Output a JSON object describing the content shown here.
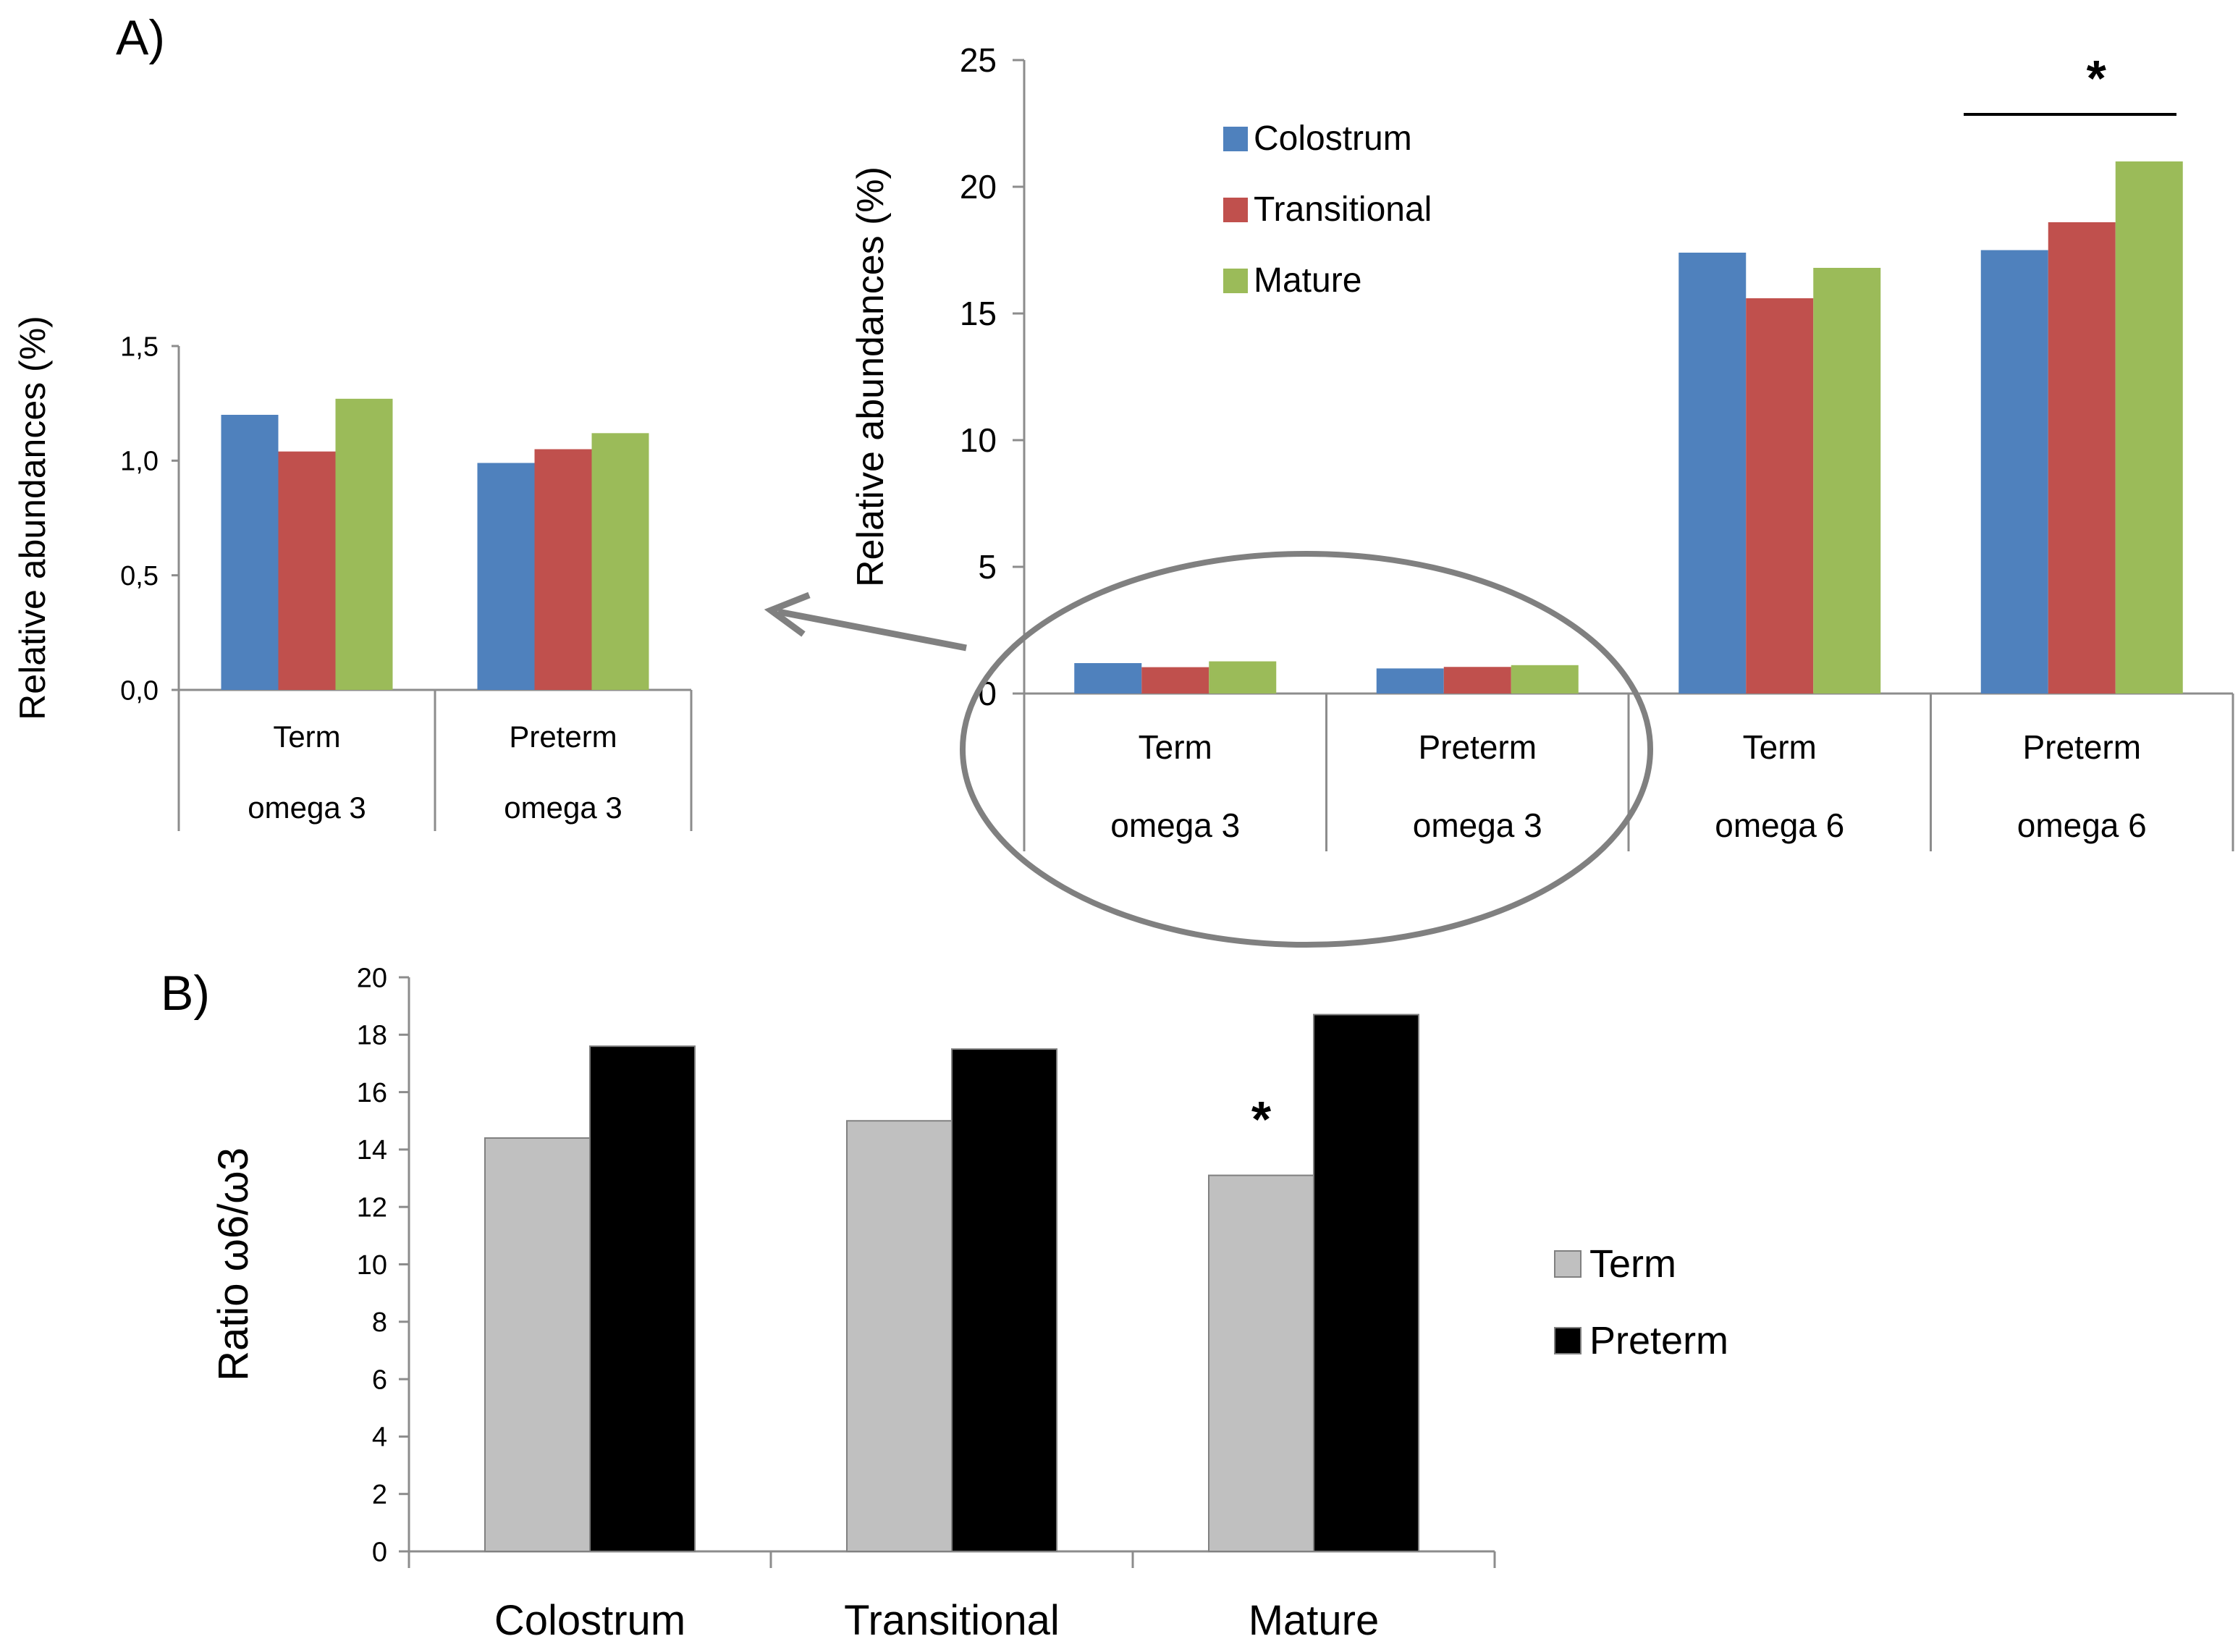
{
  "panel_a_label": "A)",
  "panel_b_label": "B)",
  "colors": {
    "colostrum": "#4F81BD",
    "transitional": "#C0504D",
    "mature": "#9BBB59",
    "term": "#C0C0C0",
    "preterm": "#000000",
    "axis": "#8C8C8C",
    "arrow": "#808080"
  },
  "significance_marker": "*",
  "chart_data": [
    {
      "id": "inset",
      "type": "bar",
      "title": "",
      "ylabel": "Relative abundances (%)",
      "ylim": [
        0,
        1.5
      ],
      "yticks": [
        "0,0",
        "0,5",
        "1,0",
        "1,5"
      ],
      "categories": [
        {
          "group": "Term",
          "sub": "omega 3"
        },
        {
          "group": "Preterm",
          "sub": "omega 3"
        }
      ],
      "series": [
        {
          "name": "Colostrum",
          "values": [
            1.2,
            0.99
          ]
        },
        {
          "name": "Transitional",
          "values": [
            1.04,
            1.05
          ]
        },
        {
          "name": "Mature",
          "values": [
            1.27,
            1.12
          ]
        }
      ]
    },
    {
      "id": "main",
      "type": "bar",
      "title": "",
      "ylabel": "Relative abundances (%)",
      "ylim": [
        0,
        25
      ],
      "yticks": [
        "0",
        "5",
        "10",
        "15",
        "20",
        "25"
      ],
      "categories": [
        {
          "group": "Term",
          "sub": "omega 3"
        },
        {
          "group": "Preterm",
          "sub": "omega 3"
        },
        {
          "group": "Term",
          "sub": "omega 6"
        },
        {
          "group": "Preterm",
          "sub": "omega 6"
        }
      ],
      "series": [
        {
          "name": "Colostrum",
          "values": [
            1.2,
            0.99,
            17.4,
            17.5
          ]
        },
        {
          "name": "Transitional",
          "values": [
            1.04,
            1.05,
            15.6,
            18.6
          ]
        },
        {
          "name": "Mature",
          "values": [
            1.27,
            1.12,
            16.8,
            21.0
          ]
        }
      ],
      "legend": [
        "Colostrum",
        "Transitional",
        "Mature"
      ],
      "legend_position": "top-left",
      "annotation": {
        "text": "*",
        "category_index": 3
      }
    },
    {
      "id": "ratio",
      "type": "bar",
      "title": "",
      "ylabel": "Ratio ω6/ω3",
      "ylim": [
        0,
        20
      ],
      "yticks": [
        "0",
        "2",
        "4",
        "6",
        "8",
        "10",
        "12",
        "14",
        "16",
        "18",
        "20"
      ],
      "categories": [
        "Colostrum",
        "Transitional",
        "Mature"
      ],
      "series": [
        {
          "name": "Term",
          "values": [
            14.4,
            15.0,
            13.1
          ]
        },
        {
          "name": "Preterm",
          "values": [
            17.6,
            17.5,
            18.7
          ]
        }
      ],
      "legend": [
        "Term",
        "Preterm"
      ],
      "legend_position": "right",
      "annotation": {
        "text": "*",
        "category_index": 2
      }
    }
  ]
}
